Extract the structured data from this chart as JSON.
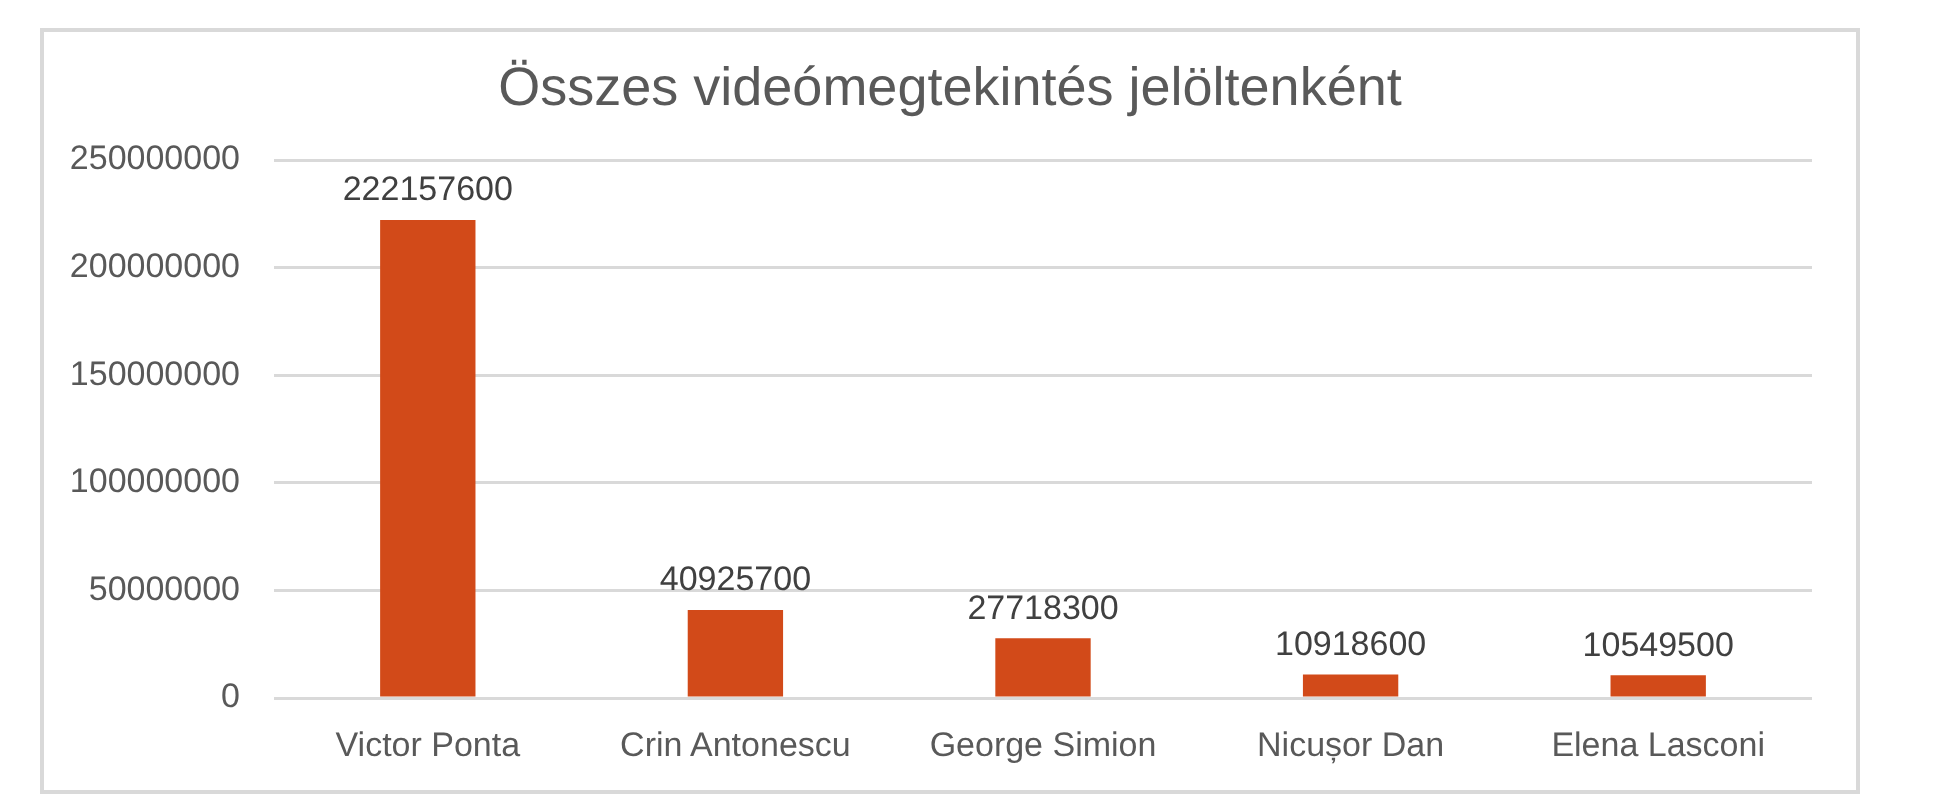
{
  "chart_data": {
    "type": "bar",
    "title": "Összes videómegtekintés jelöltenként",
    "categories": [
      "Victor Ponta",
      "Crin Antonescu",
      "George Simion",
      "Nicușor Dan",
      "Elena Lasconi"
    ],
    "values": [
      222157600,
      40925700,
      27718300,
      10918600,
      10549500
    ],
    "color": "#d24a19",
    "ylim": [
      0,
      250000000
    ],
    "yticks": [
      0,
      50000000,
      100000000,
      150000000,
      200000000,
      250000000
    ],
    "grid": "y",
    "data_labels": true
  }
}
